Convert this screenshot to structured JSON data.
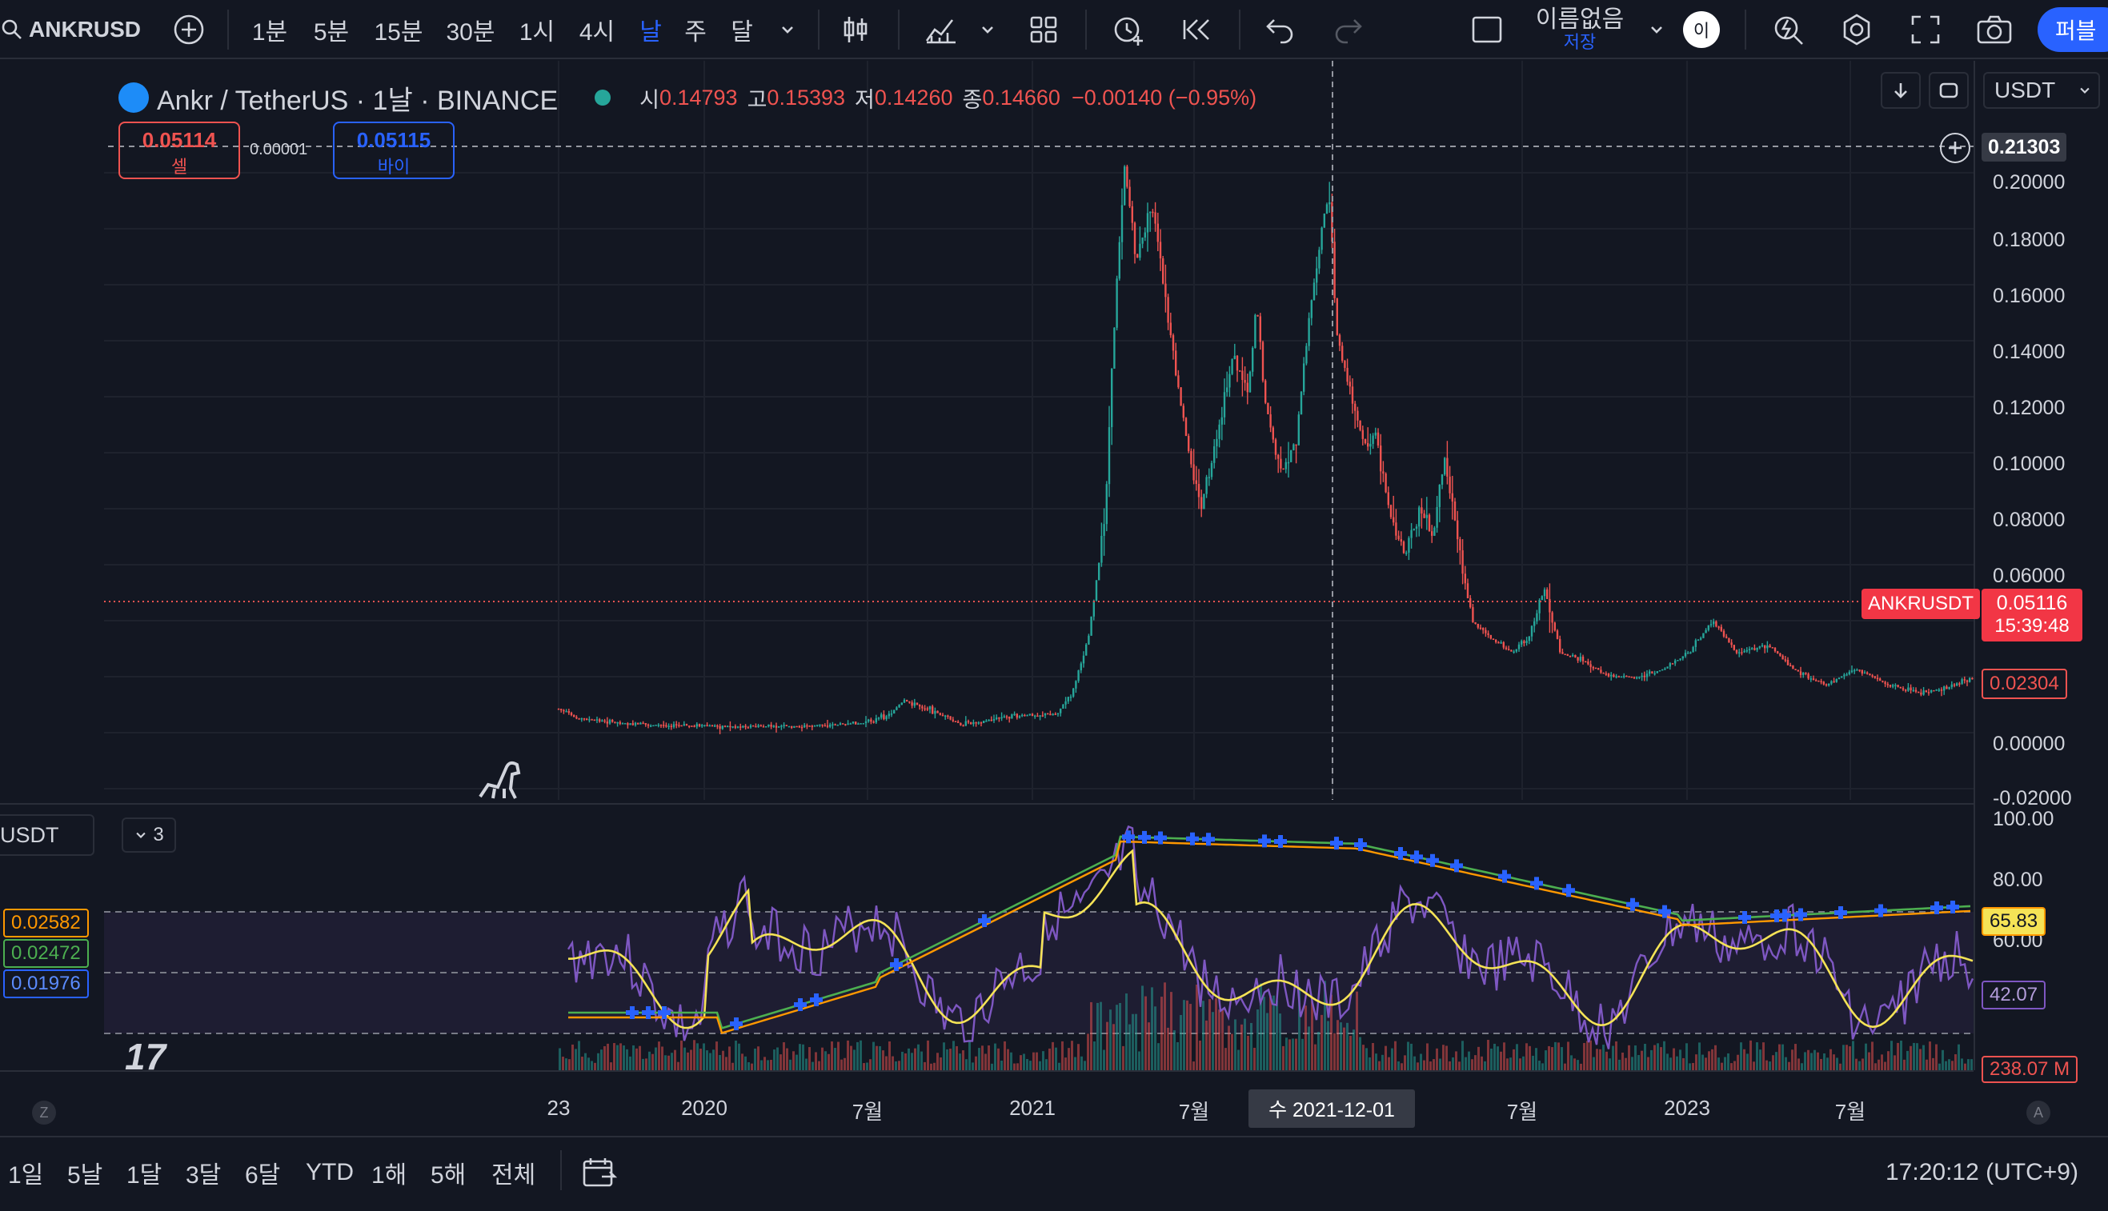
{
  "toolbar": {
    "symbol": "ANKRUSD",
    "intervals": [
      "1분",
      "5분",
      "15분",
      "30분",
      "1시",
      "4시",
      "날",
      "주",
      "달"
    ],
    "active_interval": "날",
    "layout_name": "이름없음",
    "save_label": "저장",
    "avatar": "이",
    "publish_label": "퍼블"
  },
  "legend": {
    "title": "Ankr / TetherUS · 1날 · BINANCE",
    "o_label": "시",
    "o": "0.14793",
    "h_label": "고",
    "h": "0.15393",
    "l_label": "저",
    "l": "0.14260",
    "c_label": "종",
    "c": "0.14660",
    "change": "−0.00140 (−0.95%)"
  },
  "trade": {
    "sell_price": "0.05114",
    "sell_label": "셀",
    "spread": "0.00001",
    "buy_price": "0.05115",
    "buy_label": "바이"
  },
  "currency": "USDT",
  "price_axis": {
    "labels": [
      "0.20000",
      "0.18000",
      "0.16000",
      "0.14000",
      "0.12000",
      "0.10000",
      "0.08000",
      "0.06000",
      "0.00000",
      "-0.02000"
    ],
    "crosshair_price": "0.21303",
    "current_symbol": "ANKRUSDT",
    "current_price": "0.05116",
    "countdown": "15:39:48",
    "low_marker": "0.02304"
  },
  "indicator": {
    "pane_symbol": "USDT",
    "collapse_count": "3",
    "left_values": [
      "0.02582",
      "0.02472",
      "0.01976"
    ],
    "axis_labels": [
      "100.00",
      "80.00",
      "60.00"
    ],
    "rsi_value": "65.83",
    "ma_value": "42.07",
    "volume_value": "238.07 M"
  },
  "time_axis": {
    "labels": [
      "23",
      "2020",
      "7월",
      "2021",
      "7월",
      "7월",
      "2023",
      "7월"
    ],
    "crosshair_date": "수 2021-12-01",
    "z_label": "Z",
    "a_label": "A"
  },
  "bottom": {
    "ranges": [
      "1일",
      "5날",
      "1달",
      "3달",
      "6달",
      "YTD",
      "1해",
      "5해",
      "전체"
    ],
    "clock": "17:20:12 (UTC+9)"
  },
  "colors": {
    "background": "#131722",
    "up": "#26a69a",
    "down": "#ef5350",
    "accent": "#2962ff",
    "rsi": "#f5e356",
    "rsi_raw": "#7e57c2"
  }
}
